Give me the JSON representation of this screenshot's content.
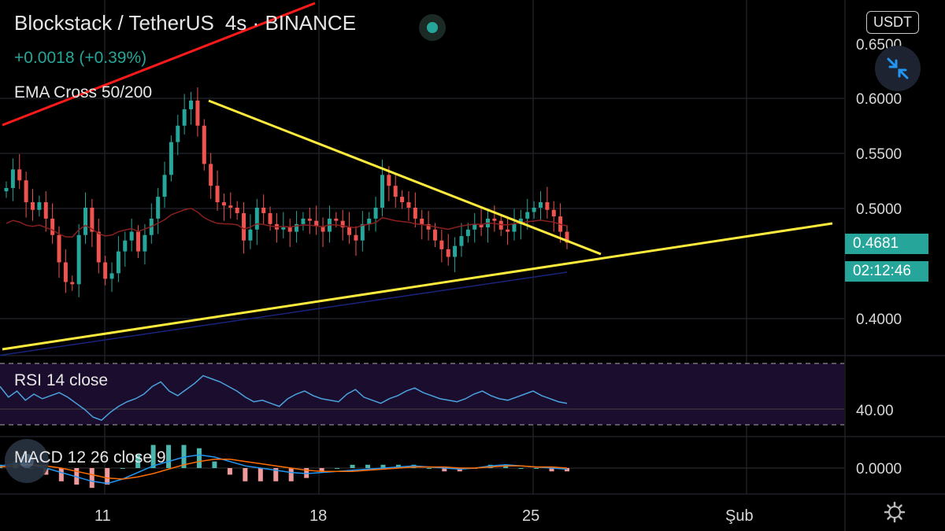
{
  "header": {
    "symbol": "Blockstack / TetherUS",
    "interval": "4s",
    "separator": "·",
    "exchange": "BINANCE",
    "change": "+0.0018 (+0.39%)",
    "status_color": "#26a69a"
  },
  "indicators": {
    "ema": "EMA Cross 50/200",
    "rsi": "RSI 14 close",
    "macd": "MACD 12 26 close 9"
  },
  "axis": {
    "currency": "USDT",
    "last_price": "0.4681",
    "countdown": "02:12:46",
    "price_ticks": [
      "0.6500",
      "0.6000",
      "0.5500",
      "0.5000",
      "0.4000"
    ],
    "rsi_tick": "40.00",
    "macd_tick": "0.0000",
    "x_ticks": [
      "11",
      "18",
      "25",
      "Şub"
    ]
  },
  "icons": {
    "collapse": "collapse-arrows-icon",
    "settings": "gear-icon",
    "live": "live-dot-icon"
  },
  "colors": {
    "up": "#26a69a",
    "down": "#ef5350",
    "trendline_yellow": "#ffeb3b",
    "trendline_red": "#ff1a1a",
    "ema50": "#8b1f1f",
    "ema200": "#1a237e",
    "rsi_line": "#4aa3df",
    "rsi_band": "#1b0d2e",
    "macd_line": "#2196f3",
    "signal_line": "#ff6d00"
  },
  "chart_data": {
    "type": "candlestick",
    "symbol": "Blockstack / TetherUS",
    "interval": "4s",
    "exchange": "BINANCE",
    "y_range": [
      0.36,
      0.655
    ],
    "x_labels": [
      "11",
      "18",
      "25",
      "Şub"
    ],
    "last_price": 0.4681,
    "closes": [
      0.518,
      0.535,
      0.525,
      0.505,
      0.498,
      0.505,
      0.49,
      0.475,
      0.45,
      0.432,
      0.43,
      0.475,
      0.5,
      0.478,
      0.45,
      0.435,
      0.44,
      0.46,
      0.47,
      0.478,
      0.46,
      0.475,
      0.49,
      0.51,
      0.53,
      0.56,
      0.575,
      0.59,
      0.598,
      0.575,
      0.54,
      0.52,
      0.505,
      0.502,
      0.5,
      0.495,
      0.47,
      0.48,
      0.5,
      0.495,
      0.485,
      0.48,
      0.482,
      0.478,
      0.485,
      0.49,
      0.488,
      0.483,
      0.478,
      0.49,
      0.488,
      0.482,
      0.475,
      0.47,
      0.485,
      0.49,
      0.5,
      0.53,
      0.52,
      0.51,
      0.505,
      0.5,
      0.49,
      0.485,
      0.48,
      0.47,
      0.462,
      0.455,
      0.465,
      0.474,
      0.48,
      0.485,
      0.482,
      0.49,
      0.488,
      0.48,
      0.478,
      0.485,
      0.49,
      0.496,
      0.5,
      0.505,
      0.498,
      0.492,
      0.478,
      0.468
    ],
    "ema50_start_end": [
      0.48,
      0.486
    ],
    "ema200_start_end": [
      0.365,
      0.441
    ],
    "trendlines": [
      {
        "color": "yellow",
        "from": [
          0.0,
          0.365
        ],
        "to": [
          1.0,
          0.487
        ]
      },
      {
        "color": "yellow",
        "from": [
          0.262,
          0.597
        ],
        "to": [
          0.745,
          0.458
        ]
      },
      {
        "color": "red",
        "from": [
          0.0,
          0.6
        ],
        "to": [
          0.37,
          0.68
        ]
      }
    ],
    "rsi": {
      "upper": 70,
      "lower": 30,
      "tick": 40.0,
      "values": [
        55,
        48,
        52,
        46,
        50,
        47,
        49,
        51,
        48,
        44,
        40,
        35,
        33,
        38,
        42,
        45,
        47,
        50,
        55,
        58,
        52,
        49,
        53,
        57,
        62,
        60,
        58,
        55,
        52,
        48,
        45,
        46,
        44,
        42,
        47,
        50,
        52,
        49,
        47,
        46,
        45,
        50,
        53,
        48,
        46,
        44,
        47,
        49,
        52,
        54,
        51,
        49,
        47,
        46,
        45,
        47,
        50,
        52,
        49,
        47,
        46,
        48,
        50,
        52,
        49,
        47,
        45,
        44
      ]
    },
    "macd": {
      "tick": 0.0,
      "macd": [
        0.002,
        0.004,
        0.003,
        0.0,
        -0.004,
        -0.008,
        -0.012,
        -0.014,
        -0.01,
        -0.004,
        0.002,
        0.006,
        0.01,
        0.012,
        0.01,
        0.006,
        0.002,
        0.0,
        -0.002,
        -0.004,
        -0.005,
        -0.004,
        -0.003,
        -0.002,
        -0.001,
        0.0,
        0.001,
        0.002,
        0.001,
        0.0,
        -0.001,
        0.0,
        0.002,
        0.003,
        0.002,
        0.001,
        0.0,
        -0.001
      ],
      "signal": [
        0.001,
        0.002,
        0.003,
        0.002,
        0.0,
        -0.003,
        -0.006,
        -0.009,
        -0.01,
        -0.008,
        -0.005,
        -0.001,
        0.003,
        0.006,
        0.008,
        0.008,
        0.006,
        0.004,
        0.002,
        0.0,
        -0.002,
        -0.003,
        -0.003,
        -0.003,
        -0.002,
        -0.001,
        0.0,
        0.001,
        0.001,
        0.001,
        0.0,
        0.0,
        0.001,
        0.002,
        0.002,
        0.001,
        0.001,
        0.0
      ]
    }
  }
}
